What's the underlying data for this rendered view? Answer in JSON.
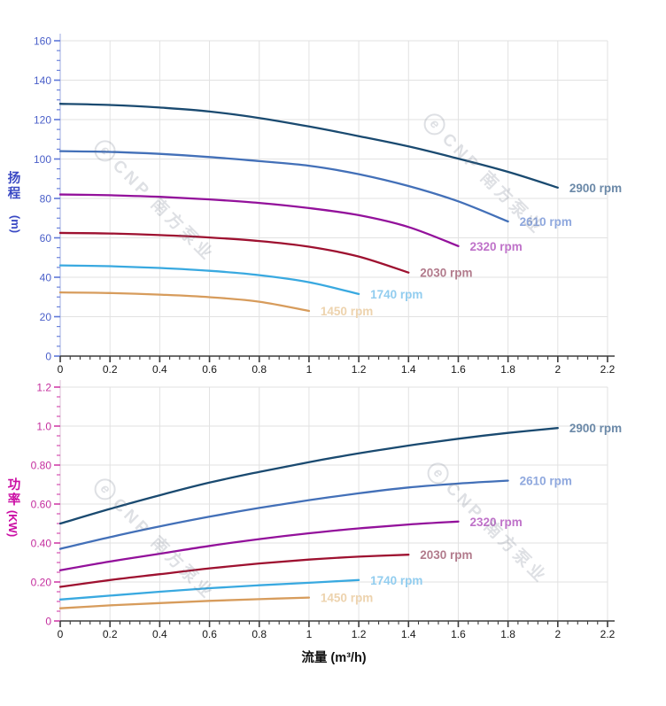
{
  "watermark": {
    "logo_letter": "e",
    "text": "CNP 南方泵业"
  },
  "flow_axis_title": "流量 (m³/h)",
  "chart_data": [
    {
      "type": "line",
      "name": "head-vs-flow",
      "y_axis": {
        "title": "扬程",
        "unit": "(m)",
        "min": 0,
        "max": 160,
        "major_step": 20,
        "minor_step": 5,
        "tick_labels": [
          "0",
          "20",
          "40",
          "60",
          "80",
          "100",
          "120",
          "140",
          "160"
        ],
        "text_color": "#4a5fc9",
        "tick_color": "#5e77d8",
        "line_color": "#b9c3ea",
        "title_color": "#3a49c4"
      },
      "x_axis": {
        "min": 0,
        "max": 2.2,
        "major_step": 0.2,
        "minor_step": 0.04,
        "tick_labels": [
          "0",
          "0.2",
          "0.4",
          "0.6",
          "0.8",
          "1",
          "1.2",
          "1.4",
          "1.6",
          "1.8",
          "2",
          "2.2"
        ],
        "text_color": "#181818",
        "tick_color": "#3c3c3c",
        "line_color": "#3c3c3c"
      },
      "grid_color": "#e2e2e2",
      "series": [
        {
          "label": "2900 rpm",
          "rpm": 2900,
          "color": "#1a4a70",
          "label_color": "#6b89a8",
          "x_start": 0,
          "x_step": 0.2,
          "values": [
            128,
            127.4,
            126.1,
            124.1,
            120.8,
            116.5,
            111.6,
            106.4,
            100.2,
            93.5,
            85.5
          ]
        },
        {
          "label": "2610 rpm",
          "rpm": 2610,
          "color": "#4370b8",
          "label_color": "#8fa8de",
          "x_start": 0,
          "x_step": 0.2,
          "values": [
            104,
            103.6,
            102.6,
            101,
            98.9,
            96.6,
            92.3,
            86.3,
            78.5,
            68.3
          ]
        },
        {
          "label": "2320 rpm",
          "rpm": 2320,
          "color": "#93119b",
          "label_color": "#bf72c9",
          "x_start": 0,
          "x_step": 0.2,
          "values": [
            82,
            81.6,
            80.8,
            79.5,
            77.7,
            75.1,
            71.5,
            65.5,
            55.8
          ]
        },
        {
          "label": "2030 rpm",
          "rpm": 2030,
          "color": "#9e1130",
          "label_color": "#b27b8c",
          "x_start": 0,
          "x_step": 0.2,
          "values": [
            62.5,
            62.2,
            61.4,
            60.2,
            58.4,
            55.5,
            50.5,
            42.4
          ]
        },
        {
          "label": "1740 rpm",
          "rpm": 1740,
          "color": "#39a9e0",
          "label_color": "#92cdef",
          "x_start": 0,
          "x_step": 0.2,
          "values": [
            46,
            45.6,
            44.7,
            43.3,
            41.1,
            37.5,
            31.5
          ]
        },
        {
          "label": "1450 rpm",
          "rpm": 1450,
          "color": "#d79c5c",
          "label_color": "#edd3ae",
          "x_start": 0,
          "x_step": 0.2,
          "values": [
            32.3,
            32,
            31.2,
            29.9,
            27.6,
            22.9
          ]
        }
      ]
    },
    {
      "type": "line",
      "name": "power-vs-flow",
      "y_axis": {
        "title": "功率",
        "unit": "(KW)",
        "min": 0,
        "max": 1.2,
        "major_step": 0.2,
        "minor_step": 0.05,
        "tick_labels": [
          "0",
          "0.20",
          "0.40",
          "0.60",
          "0.80",
          "1.0",
          "1.2"
        ],
        "text_color": "#c42e9e",
        "tick_color": "#d13fa8",
        "line_color": "#e6cfe0",
        "title_color": "#cb0da4"
      },
      "x_axis": {
        "min": 0,
        "max": 2.2,
        "major_step": 0.2,
        "minor_step": 0.04,
        "tick_labels": [
          "0",
          "0.2",
          "0.4",
          "0.6",
          "0.8",
          "1",
          "1.2",
          "1.4",
          "1.6",
          "1.8",
          "2",
          "2.2"
        ],
        "text_color": "#181818",
        "tick_color": "#3c3c3c",
        "line_color": "#3c3c3c"
      },
      "grid_color": "#e2e2e2",
      "series": [
        {
          "label": "2900 rpm",
          "rpm": 2900,
          "color": "#1a4a70",
          "label_color": "#6b89a8",
          "x_start": 0,
          "x_step": 0.2,
          "values": [
            0.5,
            0.575,
            0.645,
            0.71,
            0.765,
            0.815,
            0.86,
            0.9,
            0.935,
            0.965,
            0.99
          ]
        },
        {
          "label": "2610 rpm",
          "rpm": 2610,
          "color": "#4370b8",
          "label_color": "#8fa8de",
          "x_start": 0,
          "x_step": 0.2,
          "values": [
            0.37,
            0.43,
            0.485,
            0.535,
            0.58,
            0.62,
            0.655,
            0.685,
            0.705,
            0.72
          ]
        },
        {
          "label": "2320 rpm",
          "rpm": 2320,
          "color": "#93119b",
          "label_color": "#bf72c9",
          "x_start": 0,
          "x_step": 0.2,
          "values": [
            0.26,
            0.305,
            0.345,
            0.385,
            0.42,
            0.45,
            0.475,
            0.495,
            0.51
          ]
        },
        {
          "label": "2030 rpm",
          "rpm": 2030,
          "color": "#9e1130",
          "label_color": "#b27b8c",
          "x_start": 0,
          "x_step": 0.2,
          "values": [
            0.175,
            0.21,
            0.24,
            0.27,
            0.295,
            0.315,
            0.33,
            0.34
          ]
        },
        {
          "label": "1740 rpm",
          "rpm": 1740,
          "color": "#39a9e0",
          "label_color": "#92cdef",
          "x_start": 0,
          "x_step": 0.2,
          "values": [
            0.11,
            0.13,
            0.15,
            0.168,
            0.183,
            0.196,
            0.21
          ]
        },
        {
          "label": "1450 rpm",
          "rpm": 1450,
          "color": "#d79c5c",
          "label_color": "#edd3ae",
          "x_start": 0,
          "x_step": 0.2,
          "values": [
            0.065,
            0.08,
            0.092,
            0.103,
            0.112,
            0.12
          ]
        }
      ]
    }
  ]
}
